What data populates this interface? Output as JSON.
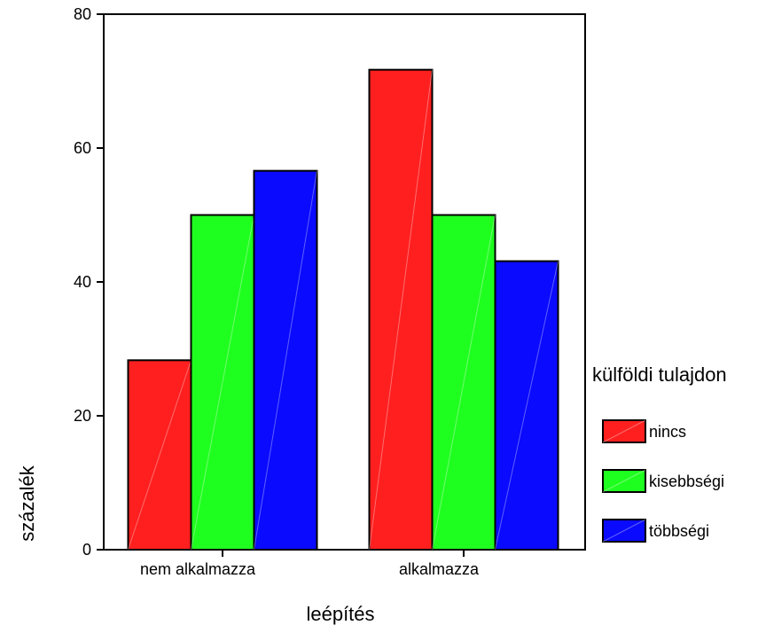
{
  "chart_data": {
    "type": "bar",
    "title": "",
    "xlabel": "leépítés",
    "ylabel": "százalék",
    "ylim": [
      0,
      80
    ],
    "yticks": [
      0,
      20,
      40,
      60,
      80
    ],
    "grid": false,
    "legend_title": "külföldi tulajdon",
    "legend_position": "right",
    "categories": [
      "nem alkalmazza",
      "alkalmazza"
    ],
    "series": [
      {
        "name": "nincs",
        "values": [
          28.3,
          71.7
        ],
        "color": "#ff1f1f"
      },
      {
        "name": "kisebbségi",
        "values": [
          50.0,
          50.0
        ],
        "color": "#1fff1f"
      },
      {
        "name": "többségi",
        "values": [
          56.6,
          43.1
        ],
        "color": "#0a0aff"
      }
    ]
  }
}
